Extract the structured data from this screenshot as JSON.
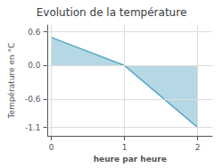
{
  "chart_data": {
    "type": "area",
    "title": "Evolution de la température",
    "xlabel": "heure par heure",
    "ylabel": "Température en °C",
    "x": [
      0,
      1,
      2
    ],
    "values": [
      0.5,
      0.0,
      -1.1
    ],
    "color": "#5ba8c4",
    "xlim": [
      -0.05,
      2.2
    ],
    "xticks": [
      0,
      1,
      2
    ],
    "ylim": [
      -1.25,
      0.72
    ],
    "yticks": [
      -1.1,
      -0.6,
      {
        "value": 0,
        "label": "0.0"
      },
      0.6
    ],
    "grid": true
  }
}
